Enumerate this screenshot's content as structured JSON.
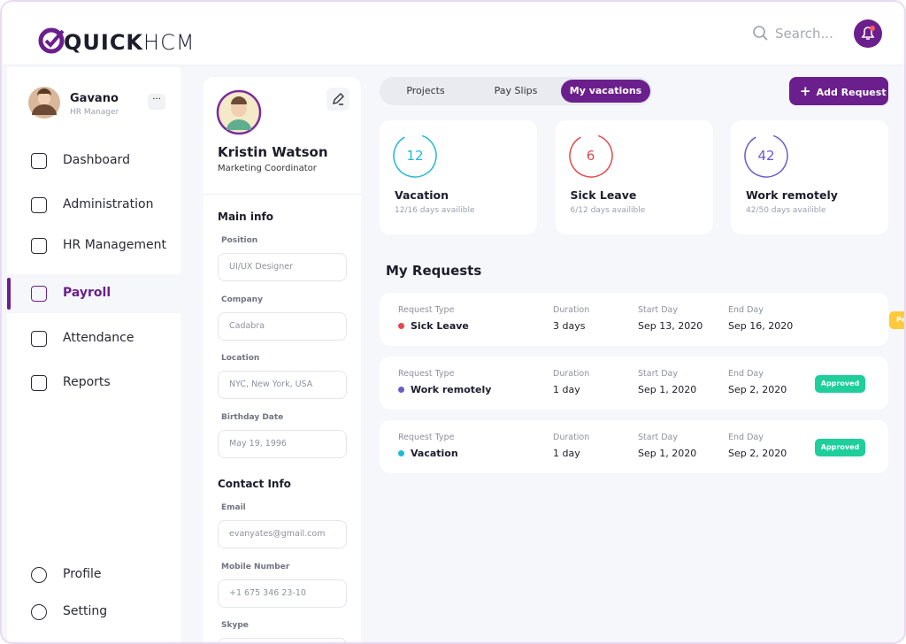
{
  "header": {
    "logo": {
      "brand": "QUICK",
      "suffix": "HCM"
    },
    "search_placeholder": "Search..."
  },
  "sidebar": {
    "user": {
      "name": "Gavano",
      "role": "HR Manager"
    },
    "nav": [
      {
        "label": "Dashboard",
        "active": false
      },
      {
        "label": "Administration",
        "active": false
      },
      {
        "label": "HR Management",
        "active": false
      },
      {
        "label": "Payroll",
        "active": true
      },
      {
        "label": "Attendance",
        "active": false
      },
      {
        "label": "Reports",
        "active": false
      }
    ],
    "bottom_nav": [
      "Profile",
      "Setting"
    ]
  },
  "profile": {
    "name": "Kristin Watson",
    "title": "Marketing Coordinator",
    "main_info": {
      "heading": "Main info",
      "fields": [
        {
          "label": "Position",
          "value": "UI/UX Designer"
        },
        {
          "label": "Company",
          "value": "Cadabra"
        },
        {
          "label": "Location",
          "value": "NYC, New York, USA"
        },
        {
          "label": "Birthday Date",
          "value": "May 19, 1996"
        }
      ]
    },
    "contact_info": {
      "heading": "Contact Info",
      "fields": [
        {
          "label": "Email",
          "value": "evanyates@gmail.com"
        },
        {
          "label": "Mobile Number",
          "value": "+1 675 346 23-10"
        },
        {
          "label": "Skype"
        }
      ]
    }
  },
  "tabs": [
    {
      "label": "Projects",
      "active": false
    },
    {
      "label": "Pay Slips",
      "active": false
    },
    {
      "label": "My vacations",
      "active": true
    }
  ],
  "actions": {
    "add_request": "Add Request"
  },
  "stats": [
    {
      "value": 12,
      "label": "Vacation",
      "detail": "12/16 days availible",
      "color": "#22b8d6"
    },
    {
      "value": 6,
      "label": "Sick Leave",
      "detail": "6/12 days availible",
      "color": "#e5484d"
    },
    {
      "value": 42,
      "label": "Work remotely",
      "detail": "42/50 days availible",
      "color": "#6a5acd"
    }
  ],
  "requests": {
    "title": "My Requests",
    "columns": [
      "Request Type",
      "Duration",
      "Start Day",
      "End Day"
    ],
    "rows": [
      {
        "type": "Sick Leave",
        "color": "#e5484d",
        "duration": "3 days",
        "start": "Sep 13, 2020",
        "end": "Sep 16, 2020",
        "status": "Pe",
        "status_color": "#ffc93c"
      },
      {
        "type": "Work remotely",
        "color": "#6a5acd",
        "duration": "1 day",
        "start": "Sep 1, 2020",
        "end": "Sep 2, 2020",
        "status": "Approved",
        "status_color": "#1ecf9c"
      },
      {
        "type": "Vacation",
        "color": "#22b8d6",
        "duration": "1 day",
        "start": "Sep 1, 2020",
        "end": "Sep 2, 2020",
        "status": "Approved",
        "status_color": "#1ecf9c"
      }
    ]
  }
}
